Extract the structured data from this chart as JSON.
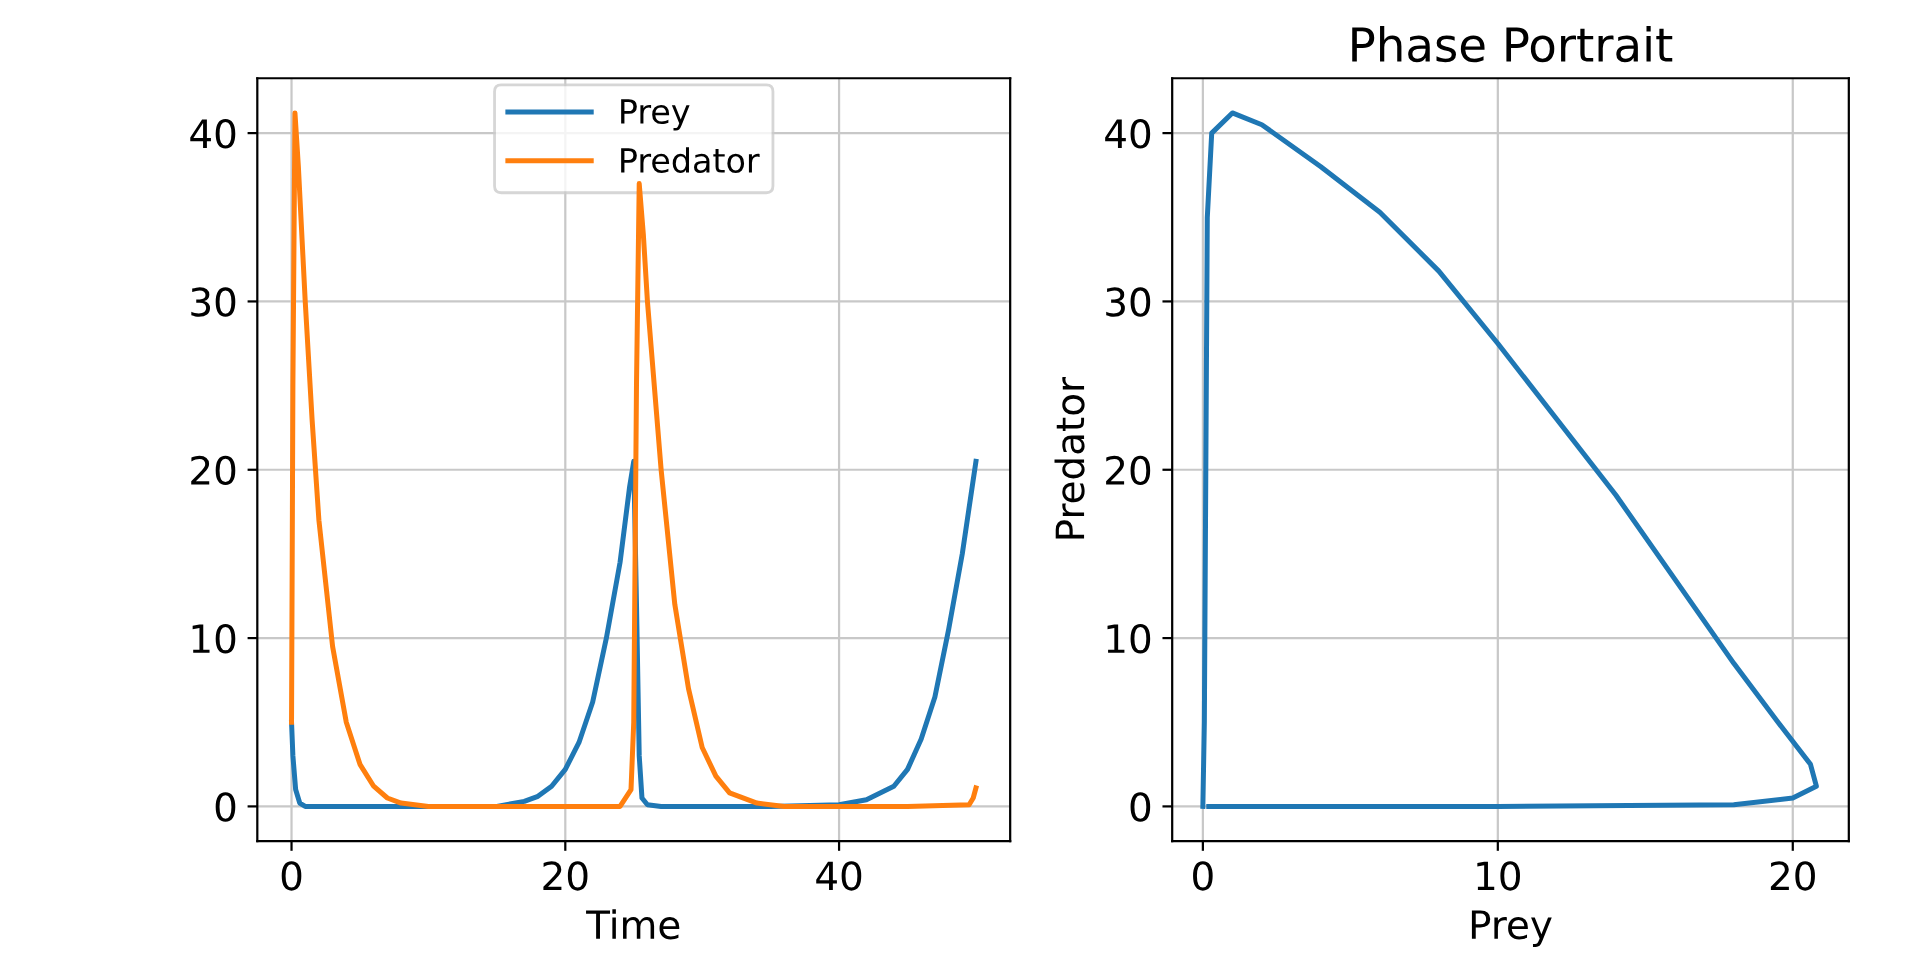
{
  "chart_data": [
    {
      "type": "line",
      "xlabel": "Time",
      "xlim": [
        -2.5,
        52.5
      ],
      "ylim": [
        -2.06,
        43.26
      ],
      "xticks": [
        0,
        20,
        40
      ],
      "yticks": [
        0,
        10,
        20,
        30,
        40
      ],
      "grid": true,
      "legend": "top",
      "line_style": "solid",
      "series": [
        {
          "name": "Prey",
          "color": "#1f77b4",
          "x": [
            0,
            0.1,
            0.3,
            0.6,
            1,
            2,
            5,
            10,
            15,
            17,
            18,
            19,
            20,
            21,
            22,
            23,
            24,
            24.7,
            25,
            25.2,
            25.4,
            25.6,
            26,
            27,
            30,
            35,
            40,
            42,
            44,
            45,
            46,
            47,
            48,
            49,
            50
          ],
          "values": [
            5,
            3,
            1,
            0.2,
            0,
            0,
            0,
            0,
            0,
            0.3,
            0.6,
            1.2,
            2.2,
            3.8,
            6.2,
            10,
            14.5,
            19,
            20.5,
            12,
            3,
            0.5,
            0.1,
            0,
            0,
            0,
            0.1,
            0.4,
            1.2,
            2.2,
            4,
            6.5,
            10.5,
            15,
            20.5
          ]
        },
        {
          "name": "Predator",
          "color": "#ff7f0e",
          "x": [
            0,
            0.1,
            0.25,
            0.5,
            1,
            1.5,
            2,
            3,
            4,
            5,
            6,
            7,
            8,
            10,
            15,
            20,
            24,
            24.8,
            25,
            25.2,
            25.4,
            25.7,
            26,
            27,
            28,
            29,
            30,
            31,
            32,
            34,
            36,
            45,
            49.5,
            49.8,
            50
          ],
          "values": [
            5,
            25,
            41.2,
            38,
            30,
            23,
            17,
            9.5,
            5,
            2.5,
            1.2,
            0.5,
            0.2,
            0,
            0,
            0,
            0,
            1,
            5,
            25,
            37,
            34,
            30,
            20,
            12,
            7,
            3.5,
            1.8,
            0.8,
            0.2,
            0,
            0,
            0.1,
            0.5,
            1.1
          ]
        }
      ]
    },
    {
      "type": "line",
      "title": "Phase Portrait",
      "xlabel": "Prey",
      "ylabel": "Predator",
      "xlim": [
        -1.04,
        21.9
      ],
      "ylim": [
        -2.06,
        43.26
      ],
      "xticks": [
        0,
        10,
        20
      ],
      "yticks": [
        0,
        10,
        20,
        30,
        40
      ],
      "grid": true,
      "line_style": "solid",
      "series": [
        {
          "color": "#1f77b4",
          "x": [
            0,
            0.05,
            0.1,
            0.15,
            0.3,
            1,
            2,
            4,
            6,
            8,
            10,
            12,
            14,
            16,
            18,
            19.5,
            20.6,
            20.8,
            20,
            18,
            10,
            0.2
          ],
          "values": [
            0,
            5,
            20,
            35,
            40,
            41.2,
            40.5,
            38,
            35.3,
            31.8,
            27.5,
            23,
            18.5,
            13.5,
            8.5,
            5,
            2.5,
            1.2,
            0.5,
            0.1,
            0,
            0
          ]
        }
      ]
    }
  ]
}
